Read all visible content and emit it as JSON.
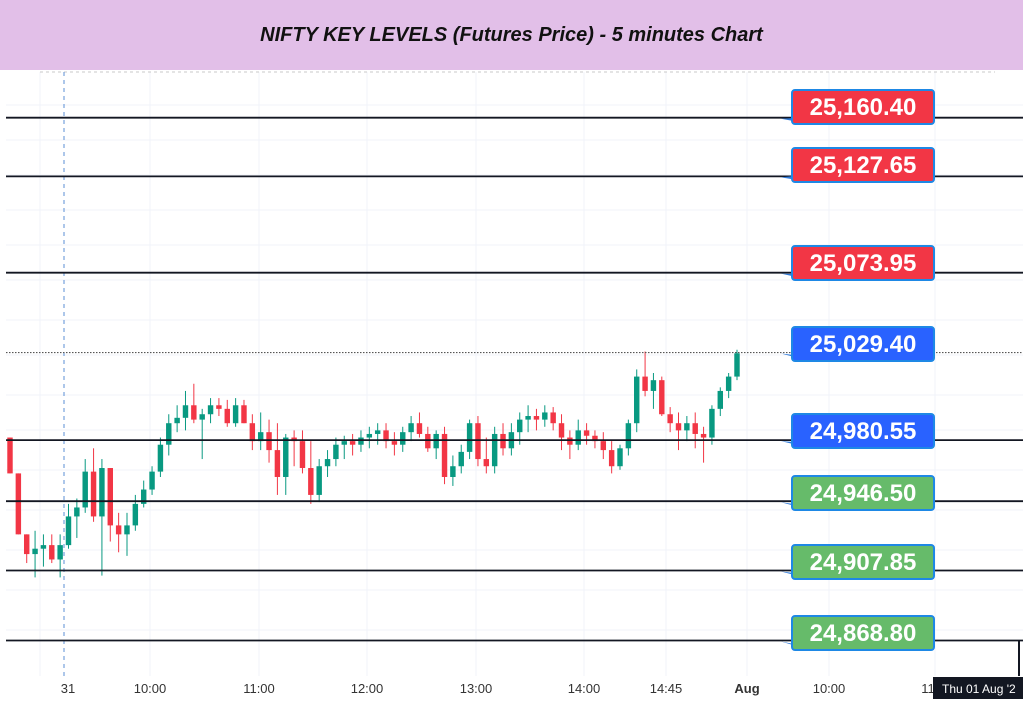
{
  "header": {
    "title": "NIFTY KEY LEVELS (Futures Price) - 5 minutes Chart"
  },
  "chart_data": {
    "type": "candlestick",
    "title": "NIFTY KEY LEVELS (Futures Price) - 5 minutes Chart",
    "ylim": [
      24849,
      25187
    ],
    "x_ticks": [
      "31",
      "10:00",
      "11:00",
      "12:00",
      "13:00",
      "14:00",
      "14:45",
      "Aug",
      "10:00",
      "11"
    ],
    "crosshair_label": "Thu 01 Aug '2",
    "key_levels": [
      {
        "value": 25160.4,
        "label": "25,160.40",
        "role": "resistance",
        "color": "#f23645"
      },
      {
        "value": 25127.65,
        "label": "25,127.65",
        "role": "resistance",
        "color": "#f23645"
      },
      {
        "value": 25073.95,
        "label": "25,073.95",
        "role": "resistance",
        "color": "#f23645"
      },
      {
        "value": 25029.4,
        "label": "25,029.40",
        "role": "pivot",
        "color": "#2962ff"
      },
      {
        "value": 24980.55,
        "label": "24,980.55",
        "role": "pivot",
        "color": "#2962ff"
      },
      {
        "value": 24946.5,
        "label": "24,946.50",
        "role": "support",
        "color": "#66bb6a"
      },
      {
        "value": 24907.85,
        "label": "24,907.85",
        "role": "support",
        "color": "#66bb6a"
      },
      {
        "value": 24868.8,
        "label": "24,868.80",
        "role": "support",
        "color": "#66bb6a"
      }
    ],
    "candles": [
      [
        24982,
        24982,
        24962,
        24962
      ],
      [
        24962,
        24962,
        24928,
        24928
      ],
      [
        24928,
        24928,
        24912,
        24917
      ],
      [
        24917,
        24930,
        24904,
        24920
      ],
      [
        24920,
        24928,
        24910,
        24922
      ],
      [
        24922,
        24928,
        24912,
        24914
      ],
      [
        24914,
        24928,
        24904,
        24922
      ],
      [
        24922,
        24945,
        24920,
        24938
      ],
      [
        24938,
        24948,
        24926,
        24943
      ],
      [
        24943,
        24970,
        24940,
        24963
      ],
      [
        24963,
        24976,
        24935,
        24938
      ],
      [
        24938,
        24970,
        24905,
        24965
      ],
      [
        24965,
        24965,
        24924,
        24933
      ],
      [
        24933,
        24940,
        24918,
        24928
      ],
      [
        24928,
        24940,
        24916,
        24933
      ],
      [
        24933,
        24950,
        24930,
        24945
      ],
      [
        24945,
        24958,
        24943,
        24953
      ],
      [
        24953,
        24966,
        24950,
        24963
      ],
      [
        24963,
        24982,
        24960,
        24978
      ],
      [
        24978,
        24995,
        24972,
        24990
      ],
      [
        24990,
        25000,
        24985,
        24993
      ],
      [
        24993,
        25008,
        24986,
        25000
      ],
      [
        25000,
        25012,
        24990,
        24992
      ],
      [
        24992,
        24998,
        24970,
        24995
      ],
      [
        24995,
        25004,
        24990,
        25000
      ],
      [
        25000,
        25004,
        24994,
        24998
      ],
      [
        24998,
        25003,
        24988,
        24990
      ],
      [
        24990,
        25004,
        24988,
        25000
      ],
      [
        25000,
        25003,
        24990,
        24990
      ],
      [
        24990,
        24995,
        24975,
        24980
      ],
      [
        24980,
        24996,
        24975,
        24985
      ],
      [
        24985,
        24992,
        24968,
        24975
      ],
      [
        24975,
        24990,
        24950,
        24960
      ],
      [
        24960,
        24984,
        24950,
        24982
      ],
      [
        24982,
        24986,
        24966,
        24980
      ],
      [
        24980,
        24986,
        24962,
        24965
      ],
      [
        24965,
        24980,
        24945,
        24950
      ],
      [
        24950,
        24970,
        24946,
        24966
      ],
      [
        24966,
        24975,
        24960,
        24970
      ],
      [
        24970,
        24982,
        24966,
        24978
      ],
      [
        24978,
        24983,
        24970,
        24980
      ],
      [
        24980,
        24984,
        24972,
        24978
      ],
      [
        24978,
        24986,
        24974,
        24982
      ],
      [
        24982,
        24988,
        24976,
        24984
      ],
      [
        24984,
        24990,
        24978,
        24986
      ],
      [
        24986,
        24990,
        24976,
        24980
      ],
      [
        24980,
        24985,
        24972,
        24978
      ],
      [
        24978,
        24988,
        24974,
        24985
      ],
      [
        24985,
        24994,
        24980,
        24990
      ],
      [
        24990,
        24996,
        24982,
        24984
      ],
      [
        24984,
        24988,
        24974,
        24976
      ],
      [
        24976,
        24986,
        24970,
        24984
      ],
      [
        24984,
        24988,
        24956,
        24960
      ],
      [
        24960,
        24972,
        24955,
        24966
      ],
      [
        24966,
        24978,
        24962,
        24974
      ],
      [
        24974,
        24992,
        24970,
        24990
      ],
      [
        24990,
        24994,
        24966,
        24970
      ],
      [
        24970,
        24982,
        24962,
        24966
      ],
      [
        24966,
        24988,
        24962,
        24984
      ],
      [
        24984,
        24990,
        24972,
        24976
      ],
      [
        24976,
        24990,
        24972,
        24985
      ],
      [
        24985,
        24996,
        24978,
        24992
      ],
      [
        24992,
        25000,
        24985,
        24994
      ],
      [
        24994,
        24998,
        24986,
        24992
      ],
      [
        24992,
        25000,
        24988,
        24996
      ],
      [
        24996,
        24999,
        24986,
        24990
      ],
      [
        24990,
        24995,
        24975,
        24982
      ],
      [
        24982,
        24986,
        24970,
        24978
      ],
      [
        24978,
        24992,
        24975,
        24986
      ],
      [
        24986,
        24990,
        24978,
        24983
      ],
      [
        24983,
        24986,
        24976,
        24980
      ],
      [
        24980,
        24985,
        24970,
        24975
      ],
      [
        24975,
        24980,
        24962,
        24966
      ],
      [
        24966,
        24978,
        24964,
        24976
      ],
      [
        24976,
        24992,
        24972,
        24990
      ],
      [
        24990,
        25020,
        24985,
        25016
      ],
      [
        25016,
        25030,
        25005,
        25008
      ],
      [
        25008,
        25018,
        24998,
        25014
      ],
      [
        25014,
        25016,
        24994,
        24995
      ],
      [
        24995,
        24999,
        24985,
        24990
      ],
      [
        24990,
        24996,
        24975,
        24986
      ],
      [
        24986,
        24994,
        24980,
        24990
      ],
      [
        24990,
        24996,
        24976,
        24984
      ],
      [
        24984,
        24988,
        24968,
        24982
      ],
      [
        24982,
        25000,
        24978,
        24998
      ],
      [
        24998,
        25010,
        24994,
        25008
      ],
      [
        25008,
        25018,
        25004,
        25016
      ],
      [
        25016,
        25031,
        25014,
        25029
      ]
    ]
  }
}
